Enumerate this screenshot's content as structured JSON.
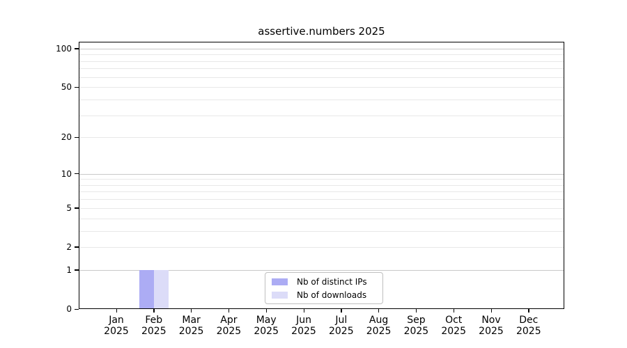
{
  "figure": {
    "background": "#ffffff"
  },
  "chart_data": {
    "type": "bar",
    "title": "assertive.numbers 2025",
    "categories": [
      "Jan",
      "Feb",
      "Mar",
      "Apr",
      "May",
      "Jun",
      "Jul",
      "Aug",
      "Sep",
      "Oct",
      "Nov",
      "Dec"
    ],
    "year_label": "2025",
    "series": [
      {
        "name": "Nb of distinct IPs",
        "color": "#acacf4",
        "values": [
          0,
          1,
          0,
          0,
          0,
          0,
          0,
          0,
          0,
          0,
          0,
          0
        ]
      },
      {
        "name": "Nb of downloads",
        "color": "#dcdcf8",
        "values": [
          0,
          1,
          0,
          0,
          0,
          0,
          0,
          0,
          0,
          0,
          0,
          0
        ]
      }
    ],
    "xlabel": "",
    "ylabel": "",
    "yaxis": {
      "scale": "log1p",
      "ticks": [
        100,
        50,
        20,
        10,
        5,
        2,
        1,
        0
      ],
      "major_gridlines": [
        1,
        10,
        100
      ],
      "minor_gridlines": [
        2,
        3,
        4,
        5,
        6,
        7,
        8,
        9,
        20,
        30,
        40,
        50,
        60,
        70,
        80,
        90
      ],
      "ylim": [
        0,
        113
      ]
    },
    "grid": true,
    "legend_position": "lower center"
  },
  "colors": {
    "axis": "#000000",
    "major_grid": "#c9c9c9",
    "minor_grid": "#e8e8e8",
    "legend_border": "#bfbfbf",
    "text": "#000000"
  }
}
